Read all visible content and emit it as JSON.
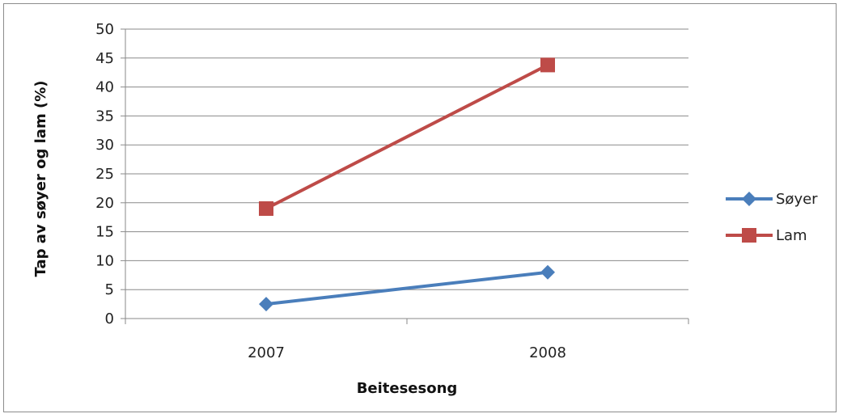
{
  "chart_data": {
    "type": "line",
    "categories": [
      "2007",
      "2008"
    ],
    "series": [
      {
        "name": "Søyer",
        "values": [
          2.5,
          8
        ],
        "color": "#4a7ebb",
        "marker": "diamond"
      },
      {
        "name": "Lam",
        "values": [
          19,
          43.8
        ],
        "color": "#be4b48",
        "marker": "square"
      }
    ],
    "title": "",
    "xlabel": "Beitesesong",
    "ylabel": "Tap av søyer og lam (%)",
    "ylim": [
      0,
      50
    ],
    "ytick_step": 5,
    "yticks": [
      "0",
      "5",
      "10",
      "15",
      "20",
      "25",
      "30",
      "35",
      "40",
      "45",
      "50"
    ],
    "grid": true,
    "legend_position": "right"
  }
}
